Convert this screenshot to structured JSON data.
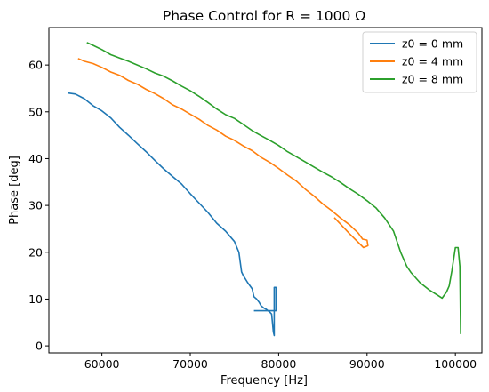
{
  "chart_data": {
    "type": "line",
    "title": "Phase Control for R = 1000 Ω",
    "xlabel": "Frequency [Hz]",
    "ylabel": "Phase [deg]",
    "xlim": [
      54000,
      103000
    ],
    "ylim": [
      -1.5,
      68
    ],
    "xticks": [
      60000,
      70000,
      80000,
      90000,
      100000
    ],
    "xtick_labels": [
      "60000",
      "70000",
      "80000",
      "90000",
      "100000"
    ],
    "yticks": [
      0,
      10,
      20,
      30,
      40,
      50,
      60
    ],
    "ytick_labels": [
      "0",
      "10",
      "20",
      "30",
      "40",
      "50",
      "60"
    ],
    "grid": false,
    "legend_position": "top-right",
    "series": [
      {
        "name": "z0 = 0 mm",
        "color": "#1f77b4",
        "x": [
          56200,
          57000,
          58000,
          59000,
          60000,
          61000,
          62000,
          63000,
          64000,
          65000,
          66000,
          67000,
          68000,
          69000,
          70000,
          71000,
          72000,
          73000,
          74000,
          75000,
          75500,
          75800,
          76000,
          76500,
          77000,
          77200,
          77500,
          77800,
          78000,
          78300,
          78600,
          79000,
          79200,
          79400,
          79500,
          79500,
          79600,
          79700,
          79700,
          77200
        ],
        "y": [
          54,
          53.8,
          52.8,
          51.3,
          50.2,
          48.7,
          46.7,
          45,
          43.2,
          41.5,
          39.6,
          37.8,
          36.2,
          34.6,
          32.5,
          30.5,
          28.5,
          26.2,
          24.5,
          22.3,
          20,
          15.8,
          15,
          13.5,
          12.2,
          10.5,
          10,
          9.3,
          8.6,
          8.1,
          7.8,
          7.2,
          6.8,
          3,
          2.2,
          12.5,
          12.5,
          12.5,
          7.5,
          7.5
        ]
      },
      {
        "name": "z0 = 4 mm",
        "color": "#ff7f0e",
        "x": [
          57300,
          58000,
          59000,
          60000,
          61000,
          62000,
          63000,
          64000,
          65000,
          66000,
          67000,
          68000,
          69000,
          70000,
          71000,
          72000,
          73000,
          74000,
          75000,
          76000,
          77000,
          78000,
          79000,
          80000,
          81000,
          82000,
          83000,
          84000,
          85000,
          86000,
          87000,
          88000,
          89000,
          89500,
          90000,
          90100,
          89600,
          88000,
          86300
        ],
        "y": [
          61.4,
          60.8,
          60.3,
          59.5,
          58.5,
          57.8,
          56.7,
          55.9,
          54.8,
          53.9,
          52.8,
          51.5,
          50.6,
          49.5,
          48.4,
          47.1,
          46.1,
          44.8,
          43.9,
          42.7,
          41.7,
          40.3,
          39.2,
          37.9,
          36.5,
          35.2,
          33.5,
          32,
          30.3,
          28.9,
          27.3,
          25.9,
          24.1,
          22.8,
          22.6,
          21.4,
          21,
          24,
          27.4
        ]
      },
      {
        "name": "z0 = 8 mm",
        "color": "#2ca02c",
        "x": [
          58300,
          59000,
          60000,
          61000,
          62000,
          63000,
          64000,
          65000,
          66000,
          67000,
          68000,
          69000,
          70000,
          71000,
          72000,
          73000,
          74000,
          75000,
          76000,
          77000,
          78000,
          79000,
          80000,
          81000,
          82000,
          83000,
          84000,
          85000,
          86000,
          87000,
          88000,
          89000,
          90000,
          91000,
          92000,
          93000,
          93800,
          94500,
          95000,
          96000,
          97000,
          98000,
          98500,
          99000,
          99300,
          99600,
          100000,
          100300,
          100500,
          100600,
          100600
        ],
        "y": [
          64.8,
          64.2,
          63.3,
          62.2,
          61.5,
          60.8,
          60,
          59.2,
          58.3,
          57.6,
          56.6,
          55.5,
          54.5,
          53.3,
          52,
          50.6,
          49.4,
          48.6,
          47.3,
          46,
          44.9,
          43.9,
          42.8,
          41.5,
          40.4,
          39.3,
          38.2,
          37.1,
          36.1,
          34.9,
          33.6,
          32.4,
          31,
          29.5,
          27.3,
          24.5,
          20,
          17,
          15.6,
          13.5,
          12,
          10.8,
          10.2,
          11.5,
          12.8,
          16,
          21,
          21,
          17,
          2.5,
          2.5
        ]
      }
    ]
  }
}
